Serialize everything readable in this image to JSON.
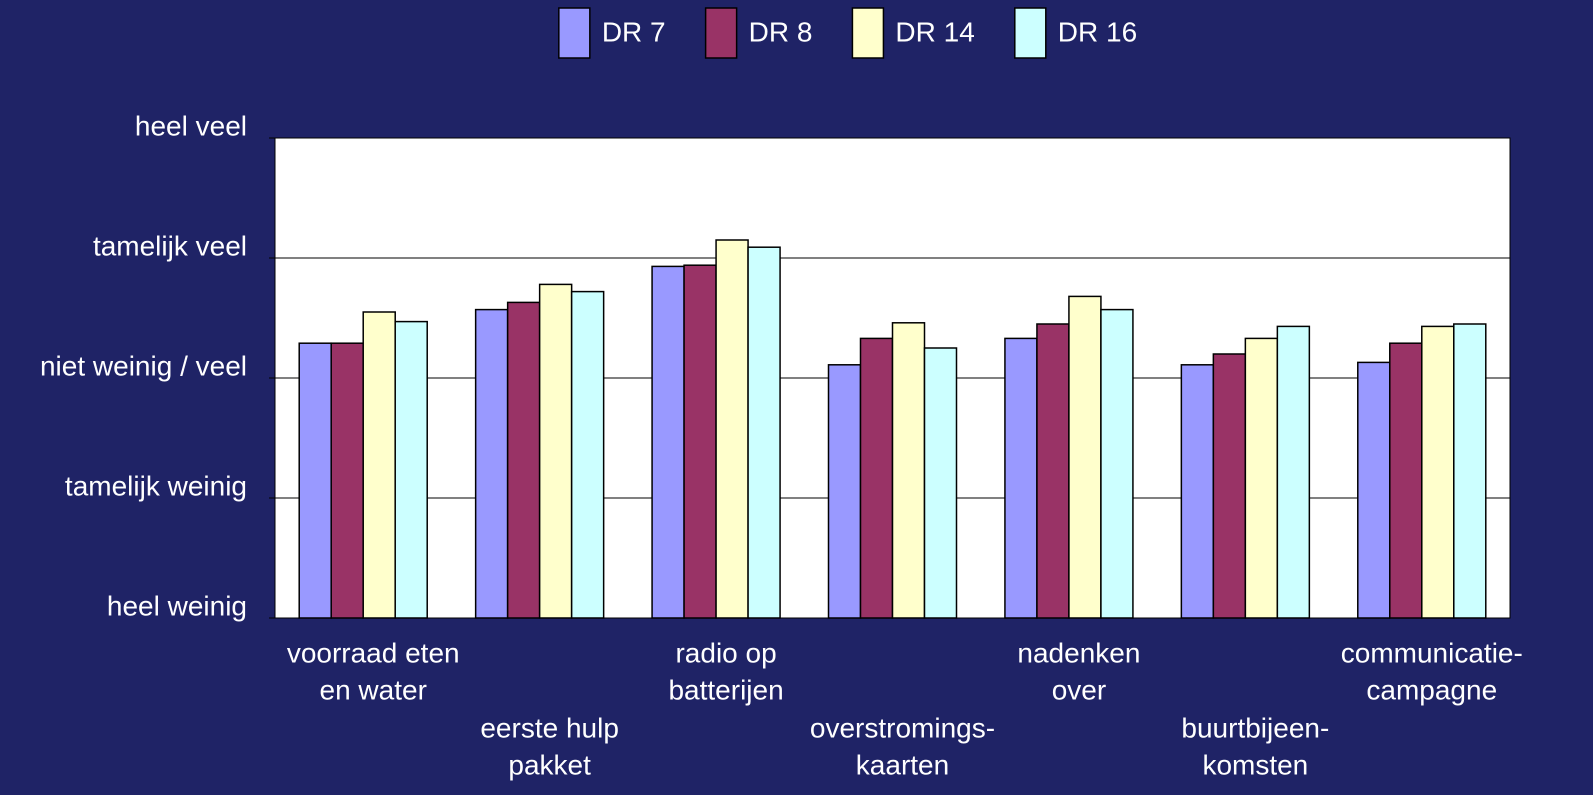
{
  "chart_data": {
    "type": "bar",
    "categories": [
      [
        "voorraad eten",
        "en water"
      ],
      [
        "eerste hulp",
        "pakket"
      ],
      [
        "radio op",
        "batterijen"
      ],
      [
        "overstromings-",
        "kaarten"
      ],
      [
        "nadenken",
        "over"
      ],
      [
        "buurtbijeen-",
        "komsten"
      ],
      [
        "communicatie-",
        "campagne"
      ]
    ],
    "series": [
      {
        "name": "DR 7",
        "color": "#9999ff",
        "values": [
          3.29,
          3.57,
          3.93,
          3.11,
          3.33,
          3.11,
          3.13
        ]
      },
      {
        "name": "DR 8",
        "color": "#993366",
        "values": [
          3.29,
          3.63,
          3.94,
          3.33,
          3.45,
          3.2,
          3.29
        ]
      },
      {
        "name": "DR 14",
        "color": "#ffffcc",
        "values": [
          3.55,
          3.78,
          4.15,
          3.46,
          3.68,
          3.33,
          3.43
        ]
      },
      {
        "name": "DR 16",
        "color": "#ccffff",
        "values": [
          3.47,
          3.72,
          4.09,
          3.25,
          3.57,
          3.43,
          3.45
        ]
      }
    ],
    "ylim": [
      1,
      5
    ],
    "yticks": [
      {
        "value": 1,
        "label": "heel weinig"
      },
      {
        "value": 2,
        "label": "tamelijk weinig"
      },
      {
        "value": 3,
        "label": "niet weinig / veel"
      },
      {
        "value": 4,
        "label": "tamelijk veel"
      },
      {
        "value": 5,
        "label": "heel veel"
      }
    ],
    "grid": true,
    "legend": "top"
  }
}
